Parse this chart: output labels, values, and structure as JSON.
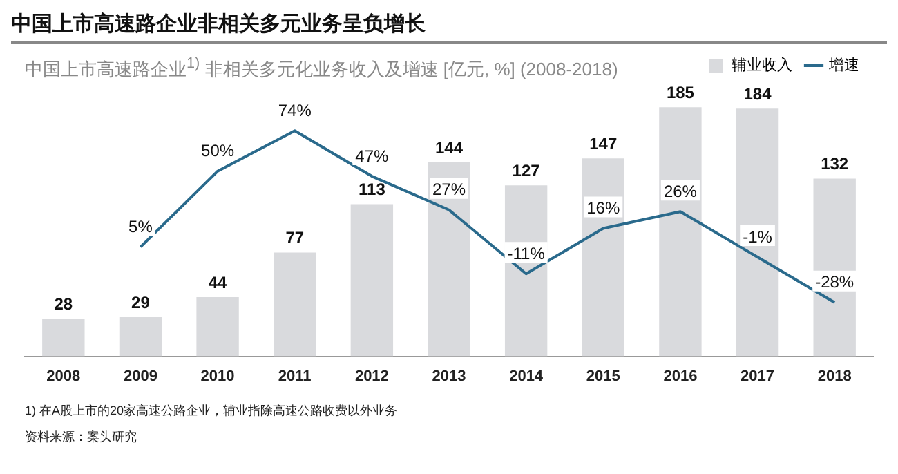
{
  "chart_data": {
    "type": "bar",
    "title": "中国上市高速路企业非相关多元业务呈负增长",
    "subtitle": "中国上市高速路企业$^{1)}$ 非相关多元化业务收入及增速  [亿元, %] (2008-2018)",
    "categories": [
      "2008",
      "2009",
      "2010",
      "2011",
      "2012",
      "2013",
      "2014",
      "2015",
      "2016",
      "2017",
      "2018"
    ],
    "series": [
      {
        "name": "辅业收入",
        "color": "#d9dadd",
        "values": [
          28,
          29,
          44,
          77,
          113,
          144,
          127,
          147,
          185,
          184,
          132
        ],
        "value_labels": [
          "28",
          "29",
          "44",
          "77",
          "113",
          "144",
          "127",
          "147",
          "185",
          "184",
          "132"
        ]
      },
      {
        "name": "增速",
        "type": "line",
        "axis": "y2",
        "color": "#2a6a8c",
        "values": [
          null,
          5,
          50,
          74,
          47,
          27,
          -11,
          16,
          26,
          -1,
          -28
        ],
        "value_labels": [
          null,
          "5%",
          "50%",
          "74%",
          "47%",
          "27%",
          "-11%",
          "16%",
          "26%",
          "-1%",
          "-28%"
        ]
      }
    ],
    "tick_labels": "x",
    "grid": false,
    "legend": "top right",
    "marker": "none",
    "annotations": [
      "1) 在A股上市的20家高速公路企业，辅业指除高速公路收费以外业务",
      "资料来源：案头研究"
    ]
  }
}
